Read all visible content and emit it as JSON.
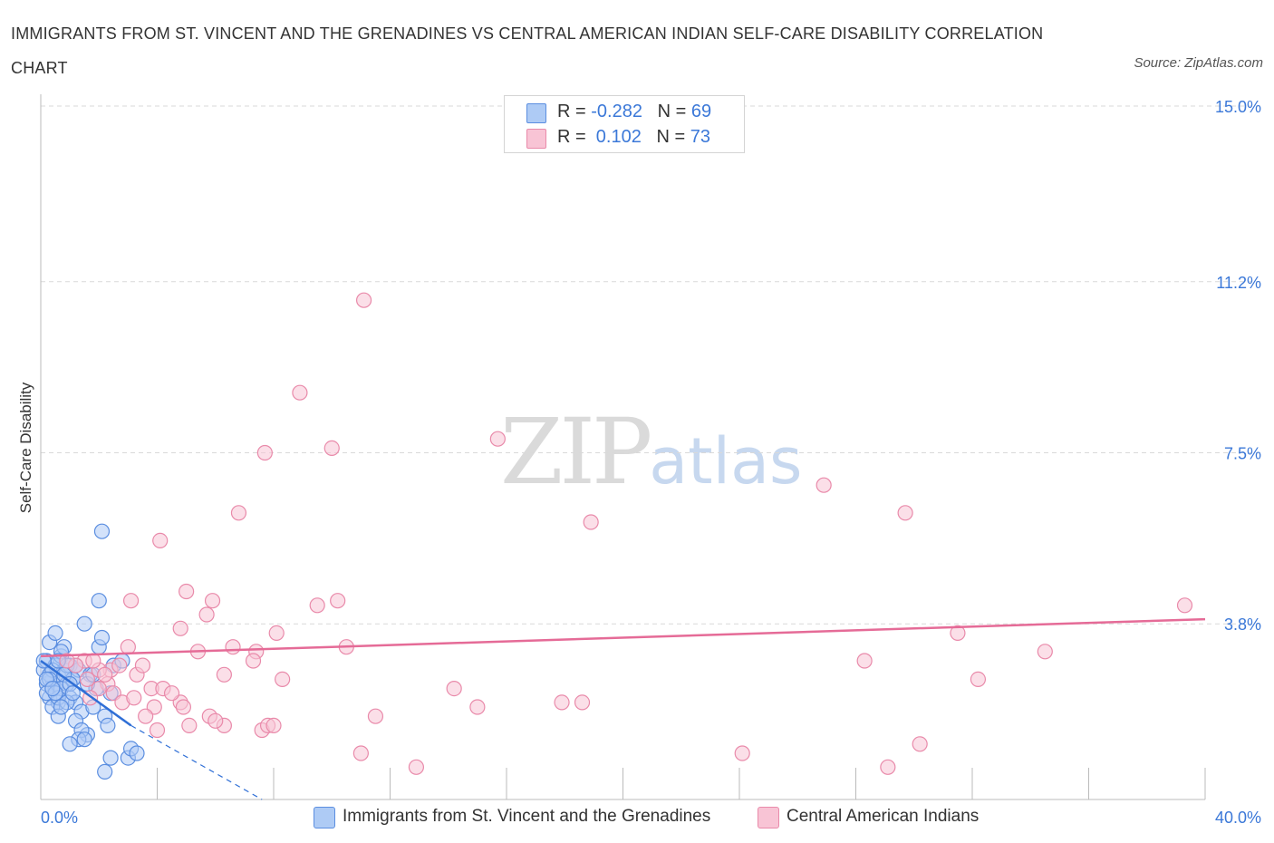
{
  "header": {
    "title": "IMMIGRANTS FROM ST. VINCENT AND THE GRENADINES VS CENTRAL AMERICAN INDIAN SELF-CARE DISABILITY CORRELATION CHART",
    "source": "Source: ZipAtlas.com"
  },
  "watermark": {
    "main": "ZIP",
    "sub": "atlas"
  },
  "legend": {
    "blue": {
      "r_label": "R = ",
      "r_value": "-0.282",
      "n_label": "N = ",
      "n_value": "69"
    },
    "pink": {
      "r_label": "R = ",
      "r_value": " 0.102",
      "n_label": "N = ",
      "n_value": "73"
    }
  },
  "colors": {
    "blue_fill": "#aecbf5",
    "blue_stroke": "#5b8ee0",
    "blue_line": "#2f6fd6",
    "pink_fill": "#f8c4d5",
    "pink_stroke": "#e98aaa",
    "pink_line": "#e56b97",
    "tick_text": "#3b78d8",
    "grid": "#d9d9d9"
  },
  "chart_data": {
    "type": "scatter",
    "title": "IMMIGRANTS FROM ST. VINCENT AND THE GRENADINES VS CENTRAL AMERICAN INDIAN SELF-CARE DISABILITY CORRELATION CHART",
    "xlabel": "",
    "ylabel": "Self-Care Disability",
    "xlim": [
      0,
      40
    ],
    "ylim": [
      0,
      15
    ],
    "x_tick_labels": [
      "0.0%",
      "40.0%"
    ],
    "y_ticks": [
      3.8,
      7.5,
      11.2,
      15.0
    ],
    "y_tick_labels": [
      "3.8%",
      "7.5%",
      "11.2%",
      "15.0%"
    ],
    "grid": true,
    "legend_position": "bottom",
    "series": [
      {
        "name": "Immigrants from St. Vincent and the Grenadines",
        "color": "blue",
        "trend": {
          "x": [
            0.0,
            3.1
          ],
          "y": [
            3.0,
            1.6
          ],
          "dashed_to_x": 7.6,
          "dashed_to_y": 0.0
        },
        "points": [
          [
            0.1,
            2.8
          ],
          [
            0.2,
            2.5
          ],
          [
            0.3,
            2.2
          ],
          [
            0.2,
            3.0
          ],
          [
            0.4,
            2.6
          ],
          [
            0.5,
            2.4
          ],
          [
            0.6,
            2.1
          ],
          [
            0.3,
            3.4
          ],
          [
            0.5,
            2.9
          ],
          [
            0.6,
            2.7
          ],
          [
            0.7,
            3.1
          ],
          [
            0.8,
            2.8
          ],
          [
            0.9,
            2.5
          ],
          [
            1.0,
            2.2
          ],
          [
            0.4,
            2.0
          ],
          [
            0.6,
            1.8
          ],
          [
            0.8,
            3.3
          ],
          [
            1.0,
            2.9
          ],
          [
            1.1,
            2.6
          ],
          [
            0.2,
            2.3
          ],
          [
            0.3,
            2.7
          ],
          [
            0.5,
            3.6
          ],
          [
            0.7,
            3.2
          ],
          [
            1.2,
            2.1
          ],
          [
            1.3,
            2.8
          ],
          [
            1.4,
            1.9
          ],
          [
            1.5,
            3.8
          ],
          [
            1.6,
            1.4
          ],
          [
            1.8,
            2.0
          ],
          [
            1.9,
            2.4
          ],
          [
            1.2,
            1.7
          ],
          [
            1.4,
            1.5
          ],
          [
            2.0,
            3.3
          ],
          [
            2.1,
            3.5
          ],
          [
            2.2,
            1.8
          ],
          [
            2.3,
            1.6
          ],
          [
            1.7,
            2.7
          ],
          [
            1.3,
            1.3
          ],
          [
            2.4,
            0.9
          ],
          [
            2.5,
            2.9
          ],
          [
            1.0,
            1.2
          ],
          [
            2.1,
            5.8
          ],
          [
            2.2,
            0.6
          ],
          [
            2.4,
            2.3
          ],
          [
            3.0,
            0.9
          ],
          [
            3.1,
            1.1
          ],
          [
            2.8,
            3.0
          ],
          [
            1.1,
            2.6
          ],
          [
            0.9,
            2.9
          ],
          [
            0.7,
            2.4
          ],
          [
            0.4,
            2.8
          ],
          [
            0.3,
            2.6
          ],
          [
            0.6,
            2.2
          ],
          [
            0.8,
            2.7
          ],
          [
            0.5,
            2.3
          ],
          [
            1.5,
            1.3
          ],
          [
            0.2,
            2.6
          ],
          [
            1.0,
            2.5
          ],
          [
            2.0,
            4.3
          ],
          [
            1.6,
            2.5
          ],
          [
            0.9,
            2.1
          ],
          [
            1.2,
            2.9
          ],
          [
            0.4,
            2.4
          ],
          [
            3.3,
            1.0
          ],
          [
            0.6,
            3.0
          ],
          [
            0.1,
            3.0
          ],
          [
            1.8,
            2.7
          ],
          [
            0.7,
            2.0
          ],
          [
            1.1,
            2.3
          ]
        ]
      },
      {
        "name": "Central American Indians",
        "color": "pink",
        "trend": {
          "x": [
            0.0,
            40.0
          ],
          "y": [
            3.1,
            3.9
          ]
        },
        "points": [
          [
            11.1,
            10.8
          ],
          [
            8.9,
            8.8
          ],
          [
            10.0,
            7.6
          ],
          [
            7.7,
            7.5
          ],
          [
            15.7,
            7.8
          ],
          [
            6.8,
            6.2
          ],
          [
            26.9,
            6.8
          ],
          [
            18.9,
            6.0
          ],
          [
            29.7,
            6.2
          ],
          [
            4.1,
            5.6
          ],
          [
            5.0,
            4.5
          ],
          [
            5.9,
            4.3
          ],
          [
            3.1,
            4.3
          ],
          [
            5.7,
            4.0
          ],
          [
            9.5,
            4.2
          ],
          [
            10.2,
            4.3
          ],
          [
            39.3,
            4.2
          ],
          [
            4.8,
            3.7
          ],
          [
            8.1,
            3.6
          ],
          [
            3.0,
            3.3
          ],
          [
            5.4,
            3.2
          ],
          [
            6.6,
            3.3
          ],
          [
            7.4,
            3.2
          ],
          [
            10.5,
            3.3
          ],
          [
            31.5,
            3.6
          ],
          [
            34.5,
            3.2
          ],
          [
            2.4,
            2.8
          ],
          [
            3.3,
            2.7
          ],
          [
            3.5,
            2.9
          ],
          [
            7.3,
            3.0
          ],
          [
            8.3,
            2.6
          ],
          [
            6.3,
            2.7
          ],
          [
            1.5,
            3.0
          ],
          [
            2.0,
            2.8
          ],
          [
            2.3,
            2.5
          ],
          [
            3.8,
            2.4
          ],
          [
            4.2,
            2.4
          ],
          [
            4.8,
            2.1
          ],
          [
            3.9,
            2.0
          ],
          [
            2.5,
            2.3
          ],
          [
            2.2,
            2.7
          ],
          [
            1.8,
            3.0
          ],
          [
            14.2,
            2.4
          ],
          [
            17.9,
            2.1
          ],
          [
            18.6,
            2.1
          ],
          [
            28.3,
            3.0
          ],
          [
            32.2,
            2.6
          ],
          [
            30.2,
            1.2
          ],
          [
            24.1,
            1.0
          ],
          [
            11.0,
            1.0
          ],
          [
            12.9,
            0.7
          ],
          [
            29.1,
            0.7
          ],
          [
            7.6,
            1.5
          ],
          [
            7.8,
            1.6
          ],
          [
            8.0,
            1.6
          ],
          [
            6.3,
            1.6
          ],
          [
            5.1,
            1.6
          ],
          [
            5.8,
            1.8
          ],
          [
            11.5,
            1.8
          ],
          [
            15.0,
            2.0
          ],
          [
            4.9,
            2.0
          ],
          [
            1.6,
            2.6
          ],
          [
            2.8,
            2.1
          ],
          [
            3.6,
            1.8
          ],
          [
            6.0,
            1.7
          ],
          [
            4.0,
            1.5
          ],
          [
            2.7,
            2.9
          ],
          [
            1.2,
            2.9
          ],
          [
            0.9,
            3.0
          ],
          [
            2.0,
            2.4
          ],
          [
            1.7,
            2.2
          ],
          [
            3.2,
            2.2
          ],
          [
            4.5,
            2.3
          ]
        ]
      }
    ]
  },
  "bottom_legend": {
    "blue_label": "Immigrants from St. Vincent and the Grenadines",
    "pink_label": "Central American Indians"
  }
}
